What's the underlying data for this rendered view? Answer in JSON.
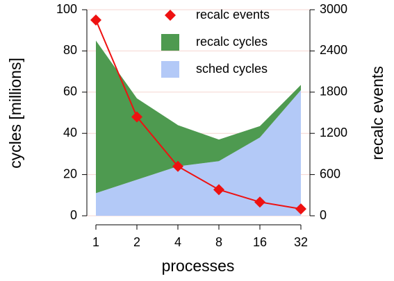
{
  "chart_data": {
    "type": "area",
    "x_label": "processes",
    "y_label": "cycles [millions]",
    "y2_label": "recalc events",
    "categories": [
      "1",
      "2",
      "4",
      "8",
      "16",
      "32"
    ],
    "ylim": [
      0,
      100
    ],
    "yticks": [
      0,
      20,
      40,
      60,
      80,
      100
    ],
    "y2lim": [
      0,
      3000
    ],
    "y2ticks": [
      0,
      600,
      1200,
      1800,
      2400,
      3000
    ],
    "grid": true,
    "legend": "upper right",
    "stacked": true,
    "series": [
      {
        "name": "recalc events",
        "type": "line",
        "axis": "y2",
        "color": "#ee1111",
        "values": [
          2850,
          1440,
          720,
          380,
          200,
          100
        ]
      },
      {
        "name": "recalc cycles",
        "type": "area",
        "color": "#4e9a50",
        "values": [
          74,
          39.5,
          20,
          10.5,
          5.5,
          2.5
        ]
      },
      {
        "name": "sched cycles",
        "type": "area",
        "color": "#b3c9f7",
        "values": [
          11,
          17.5,
          24,
          26.5,
          38,
          61
        ]
      }
    ]
  }
}
